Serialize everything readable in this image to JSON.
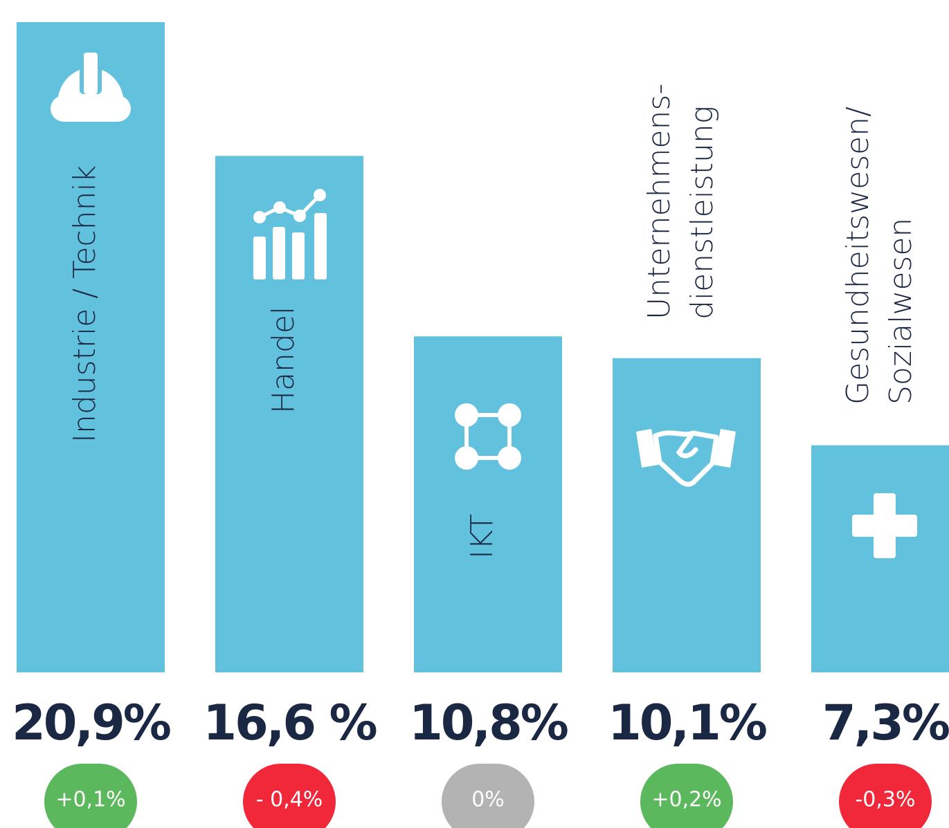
{
  "chart_data": {
    "type": "bar",
    "categories": [
      "Industrie / Technik",
      "Handel",
      "IKT",
      [
        "Unternehmens-",
        "dienstleistung"
      ],
      [
        "Gesundheitswesen/",
        "Sozialwesen"
      ]
    ],
    "values": [
      20.9,
      16.6,
      10.8,
      10.1,
      7.3
    ],
    "value_labels": [
      "20,9%",
      "16,6 %",
      "10,8%",
      "10,1%",
      "7,3%"
    ],
    "changes": [
      0.1,
      -0.4,
      0,
      0.2,
      -0.3
    ],
    "change_labels": [
      "+0,1%",
      "- 0,4%",
      "0%",
      "+0,2%",
      "-0,3%"
    ],
    "color": "#62c2de",
    "positive_color": "#5cb85c",
    "negative_color": "#f0283a",
    "neutral_color": "#b3b3b3",
    "ylim": [
      0,
      20.9
    ]
  }
}
